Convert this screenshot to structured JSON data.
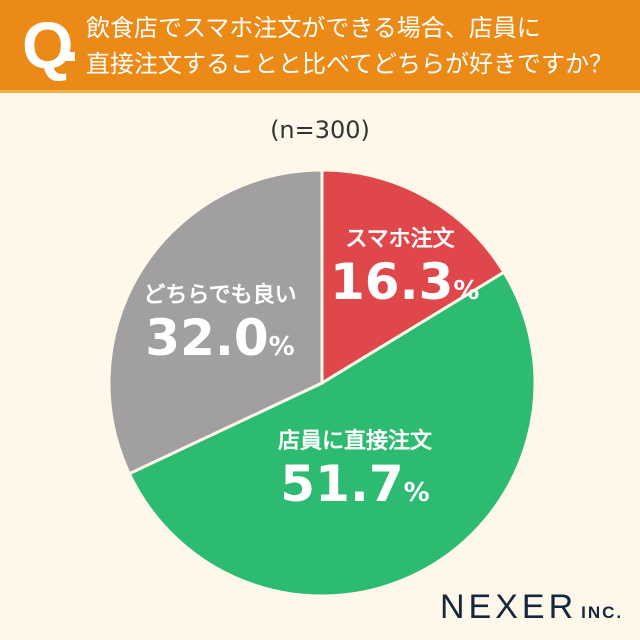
{
  "header": {
    "q_mark": "Q",
    "question": "飲食店でスマホ注文ができる場合、店員に\n直接注文することと比べてどちらが好きですか？"
  },
  "sample_size": "(n=300)",
  "chart_data": {
    "type": "pie",
    "title": "飲食店でスマホ注文ができる場合、店員に直接注文することと比べてどちらが好きですか？",
    "start": "top",
    "direction": "clockwise",
    "slices": [
      {
        "label": "スマホ注文",
        "value": 16.3,
        "display": "16.3",
        "color": "#e0474a"
      },
      {
        "label": "店員に直接注文",
        "value": 51.7,
        "display": "51.7",
        "color": "#2cbb70"
      },
      {
        "label": "どちらでも良い",
        "value": 32.0,
        "display": "32.0",
        "color": "#a19f9f"
      }
    ],
    "unit": "%"
  },
  "logo": {
    "name": "NEXER",
    "suffix": "INC."
  }
}
